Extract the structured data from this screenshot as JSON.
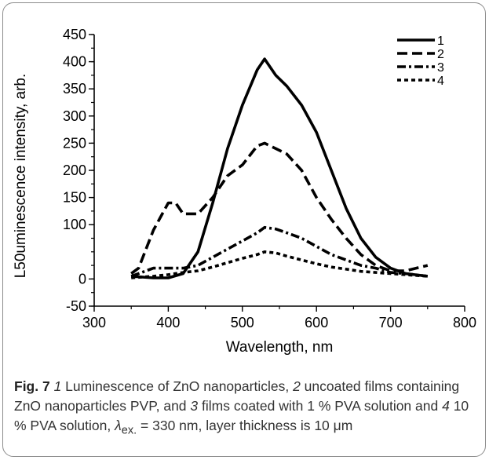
{
  "chart_data": {
    "type": "line",
    "xlabel": "Wavelength, nm",
    "ylabel": "L50uminescence intensity, arb.",
    "xlim": [
      300,
      800
    ],
    "ylim": [
      -50,
      450
    ],
    "x_ticks": [
      300,
      400,
      500,
      600,
      700,
      800
    ],
    "y_ticks": [
      -50,
      0,
      100,
      150,
      200,
      250,
      300,
      350,
      400,
      450
    ],
    "y_tick_labels": [
      "-50",
      "0",
      "100",
      "150",
      "200",
      "250",
      "300",
      "350",
      "400",
      "450"
    ],
    "grid": false,
    "legend_position": "top-right",
    "series": [
      {
        "name": "1",
        "x": [
          350,
          380,
          400,
          420,
          440,
          460,
          480,
          500,
          520,
          530,
          545,
          560,
          580,
          600,
          620,
          640,
          660,
          680,
          700,
          720,
          750
        ],
        "y": [
          5,
          2,
          2,
          10,
          50,
          140,
          240,
          320,
          385,
          405,
          375,
          355,
          320,
          270,
          200,
          130,
          75,
          40,
          20,
          10,
          5
        ]
      },
      {
        "name": "2",
        "x": [
          350,
          360,
          380,
          400,
          410,
          420,
          440,
          460,
          480,
          500,
          520,
          530,
          545,
          560,
          580,
          600,
          620,
          640,
          660,
          680,
          700,
          720,
          750
        ],
        "y": [
          10,
          20,
          90,
          140,
          140,
          120,
          120,
          150,
          190,
          210,
          245,
          250,
          240,
          230,
          200,
          150,
          110,
          75,
          45,
          25,
          15,
          15,
          25
        ]
      },
      {
        "name": "3",
        "x": [
          350,
          380,
          400,
          420,
          440,
          460,
          480,
          500,
          520,
          530,
          545,
          560,
          580,
          600,
          620,
          640,
          660,
          680,
          700,
          720,
          750
        ],
        "y": [
          5,
          20,
          20,
          20,
          25,
          40,
          55,
          70,
          85,
          95,
          92,
          85,
          75,
          60,
          45,
          35,
          25,
          20,
          12,
          10,
          5
        ]
      },
      {
        "name": "4",
        "x": [
          350,
          380,
          400,
          420,
          440,
          460,
          480,
          500,
          520,
          530,
          545,
          560,
          580,
          600,
          620,
          640,
          660,
          680,
          700,
          720,
          750
        ],
        "y": [
          2,
          5,
          8,
          12,
          15,
          22,
          30,
          38,
          45,
          50,
          48,
          42,
          35,
          28,
          22,
          18,
          14,
          12,
          10,
          8,
          5
        ]
      }
    ]
  },
  "caption": {
    "fig_label": "Fig. 7",
    "n1": "1",
    "t1": " Luminescence of ZnO nanoparticles, ",
    "n2": "2",
    "t2": " uncoated films containing ZnO nanoparticles PVP, and ",
    "n3": "3",
    "t3": " films coated with 1 % PVA solution and ",
    "n4": "4",
    "t4": " 10 % PVA solution, ",
    "lambda": "λ",
    "lambda_sub": "ex.",
    "t5": " = 330 nm, layer thickness is 10 μm"
  }
}
